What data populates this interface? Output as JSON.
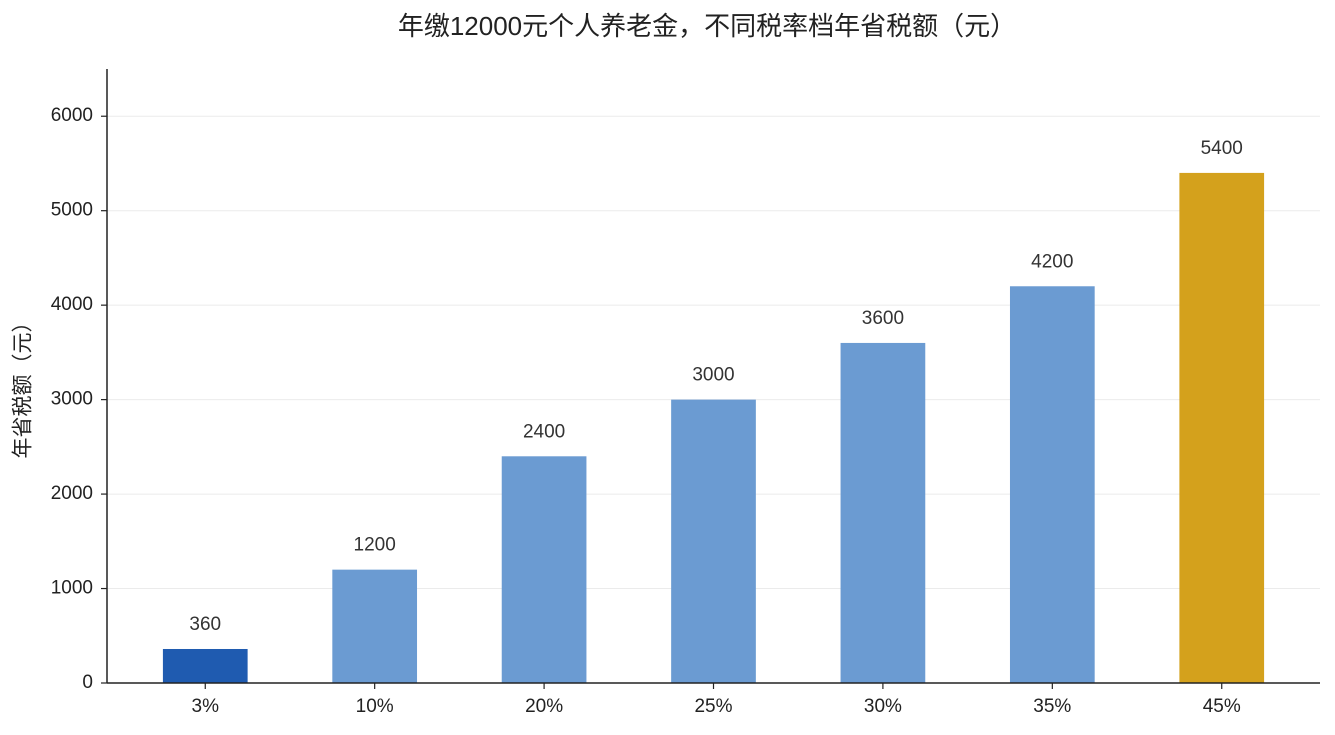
{
  "chart_data": {
    "type": "bar",
    "title": "年缴12000元个人养老金，不同税率档年省税额（元）",
    "y_label": "年省税额（元）",
    "categories": [
      "3%",
      "10%",
      "20%",
      "25%",
      "30%",
      "35%",
      "45%"
    ],
    "values": [
      360,
      1200,
      2400,
      3000,
      3600,
      4200,
      5400
    ],
    "colors": [
      "#1f5bb0",
      "#6b9bd2",
      "#6b9bd2",
      "#6b9bd2",
      "#6b9bd2",
      "#6b9bd2",
      "#d4a11c"
    ],
    "ylim": [
      0,
      6500
    ],
    "yticks": [
      0,
      1000,
      2000,
      3000,
      4000,
      5000,
      6000
    ],
    "grid": true
  }
}
